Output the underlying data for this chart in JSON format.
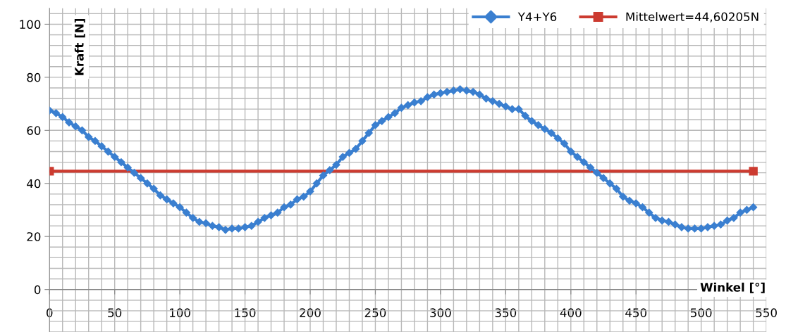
{
  "chart_data": {
    "type": "line",
    "xlabel": "Winkel [°]",
    "ylabel": "Kraft [N]",
    "xlim": [
      0,
      550
    ],
    "xticks": [
      0,
      50,
      100,
      150,
      200,
      250,
      300,
      350,
      400,
      450,
      500,
      550
    ],
    "ylim": [
      -16,
      106
    ],
    "yticks": [
      0,
      20,
      40,
      60,
      80,
      100
    ],
    "grid": true,
    "legend": "top right",
    "line_style": "solid",
    "series": [
      {
        "name": "Y4+Y6",
        "color": "#3a7fd0",
        "marker": "diamond",
        "x": [
          0,
          5,
          10,
          15,
          20,
          25,
          30,
          35,
          40,
          45,
          50,
          55,
          60,
          65,
          70,
          75,
          80,
          85,
          90,
          95,
          100,
          105,
          110,
          115,
          120,
          125,
          130,
          135,
          140,
          145,
          150,
          155,
          160,
          165,
          170,
          175,
          180,
          185,
          190,
          195,
          200,
          205,
          210,
          215,
          220,
          225,
          230,
          235,
          240,
          245,
          250,
          255,
          260,
          265,
          270,
          275,
          280,
          285,
          290,
          295,
          300,
          305,
          310,
          315,
          320,
          325,
          330,
          335,
          340,
          345,
          350,
          355,
          360,
          365,
          370,
          375,
          380,
          385,
          390,
          395,
          400,
          405,
          410,
          415,
          420,
          425,
          430,
          435,
          440,
          445,
          450,
          455,
          460,
          465,
          470,
          475,
          480,
          485,
          490,
          495,
          500,
          505,
          510,
          515,
          520,
          525,
          530,
          535,
          540
        ],
        "values": [
          67.5,
          66.5,
          65,
          63,
          61.5,
          60,
          57.5,
          56,
          54,
          52,
          50,
          48,
          46,
          44,
          42,
          40,
          38,
          35.5,
          34,
          32.5,
          31,
          29,
          27,
          25.5,
          25,
          24,
          23.5,
          22.5,
          23,
          23,
          23.5,
          24,
          25.5,
          27,
          28,
          29,
          31,
          32,
          34,
          35,
          37,
          40,
          43,
          45,
          47,
          50,
          51.5,
          53,
          56,
          59,
          62,
          63.5,
          65,
          66.5,
          68.5,
          69.5,
          70.5,
          71,
          72.5,
          73.5,
          74,
          74.5,
          75,
          75.5,
          75,
          74.5,
          73.5,
          72,
          71,
          70,
          69,
          68,
          68,
          65.5,
          63.5,
          62,
          60.5,
          59,
          57,
          55,
          52,
          50,
          48,
          46,
          44,
          42,
          40,
          38,
          35,
          33.5,
          32.5,
          31,
          29,
          27,
          26,
          25.5,
          24.5,
          23.5,
          23,
          23,
          23,
          23.5,
          24,
          24.5,
          26,
          27,
          29,
          30,
          31
        ]
      },
      {
        "name": "Mittelwert=44,60205N",
        "color": "#cc3b30",
        "marker": "square",
        "x": [
          0,
          540
        ],
        "values": [
          44.6,
          44.6
        ]
      }
    ]
  }
}
